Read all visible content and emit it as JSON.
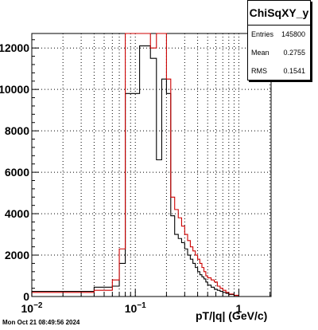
{
  "stats": {
    "title": "ChiSqXY_y",
    "rows": [
      {
        "key": "Entries",
        "value": "145800"
      },
      {
        "key": "Mean",
        "value": "0.2755"
      },
      {
        "key": "RMS",
        "value": "0.1541"
      }
    ]
  },
  "footer_text": "Mon Oct 21 08:49:56 2024",
  "colors": {
    "hist_black": "#000000",
    "hist_red": "#cc0000",
    "grid": "#000000"
  },
  "chart_data": {
    "type": "line",
    "title": "",
    "xlabel": "pT/|q| (GeV/c)",
    "ylabel": "",
    "xscale": "log",
    "xlim": [
      0.01,
      2.05
    ],
    "ylim": [
      0,
      12700
    ],
    "grid": true,
    "x_ticks": [
      {
        "v": 0.01,
        "label": "10^-2",
        "base": "10",
        "exp": "−2"
      },
      {
        "v": 0.1,
        "label": "10^-1",
        "base": "10",
        "exp": "−1"
      },
      {
        "v": 1,
        "label": "1",
        "base": "1",
        "exp": ""
      }
    ],
    "y_ticks": [
      0,
      2000,
      4000,
      6000,
      8000,
      10000,
      12000
    ],
    "series": [
      {
        "style": "black",
        "edges": [
          0.01,
          0.04,
          0.06,
          0.07,
          0.08,
          0.11,
          0.14,
          0.16,
          0.18,
          0.2,
          0.22,
          0.24,
          0.26,
          0.28,
          0.3,
          0.32,
          0.34,
          0.36,
          0.38,
          0.4,
          0.42,
          0.44,
          0.46,
          0.48,
          0.5,
          0.54,
          0.58,
          0.62,
          0.66,
          0.7,
          0.75,
          0.8,
          0.9,
          1.0
        ],
        "values": [
          250,
          450,
          500,
          1600,
          9800,
          12100,
          11500,
          6600,
          10500,
          9800,
          3900,
          3000,
          2800,
          2600,
          2300,
          2000,
          1800,
          1600,
          1400,
          1200,
          1050,
          950,
          850,
          700,
          550,
          450,
          350,
          300,
          250,
          200,
          150,
          100,
          50
        ]
      },
      {
        "style": "red",
        "edges": [
          0.01,
          0.04,
          0.06,
          0.07,
          0.08,
          0.11,
          0.14,
          0.16,
          0.18,
          0.2,
          0.22,
          0.24,
          0.26,
          0.28,
          0.3,
          0.32,
          0.34,
          0.36,
          0.38,
          0.4,
          0.42,
          0.44,
          0.46,
          0.48,
          0.5,
          0.54,
          0.58,
          0.62,
          0.66,
          0.7,
          0.75,
          0.8,
          0.9,
          1.0
        ],
        "values": [
          200,
          300,
          800,
          2300,
          12700,
          12700,
          12000,
          12700,
          12700,
          10500,
          4800,
          4200,
          3800,
          3400,
          3000,
          2700,
          2400,
          2200,
          2000,
          1800,
          1600,
          1400,
          1200,
          1000,
          900,
          800,
          700,
          500,
          400,
          300,
          200,
          120,
          60
        ]
      }
    ]
  }
}
